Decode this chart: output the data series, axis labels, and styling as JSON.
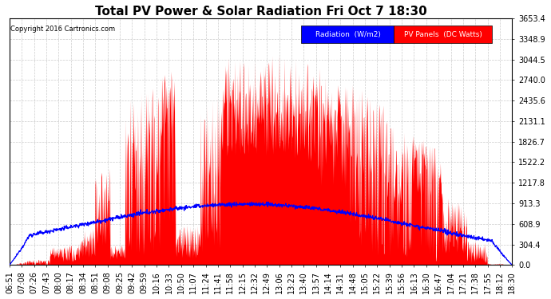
{
  "title": "Total PV Power & Solar Radiation Fri Oct 7 18:30",
  "copyright_text": "Copyright 2016 Cartronics.com",
  "legend_labels": [
    "Radiation  (W/m2)",
    "PV Panels  (DC Watts)"
  ],
  "legend_bg_colors": [
    "blue",
    "red"
  ],
  "ytick_values": [
    0.0,
    304.4,
    608.9,
    913.3,
    1217.8,
    1522.2,
    1826.7,
    2131.1,
    2435.6,
    2740.0,
    3044.5,
    3348.9,
    3653.4
  ],
  "ymax": 3653.4,
  "ymin": 0.0,
  "background_color": "#ffffff",
  "plot_background": "#ffffff",
  "grid_color": "#cccccc",
  "title_fontsize": 11,
  "tick_fontsize": 7,
  "xtick_labels": [
    "06:51",
    "07:08",
    "07:26",
    "07:43",
    "08:00",
    "08:17",
    "08:34",
    "08:51",
    "09:08",
    "09:25",
    "09:42",
    "09:59",
    "10:16",
    "10:33",
    "10:50",
    "11:07",
    "11:24",
    "11:41",
    "11:58",
    "12:15",
    "12:32",
    "12:49",
    "13:06",
    "13:23",
    "13:40",
    "13:57",
    "14:14",
    "14:31",
    "14:48",
    "15:05",
    "15:22",
    "15:39",
    "15:56",
    "16:13",
    "16:30",
    "16:47",
    "17:04",
    "17:21",
    "17:38",
    "17:55",
    "18:12",
    "18:30"
  ]
}
